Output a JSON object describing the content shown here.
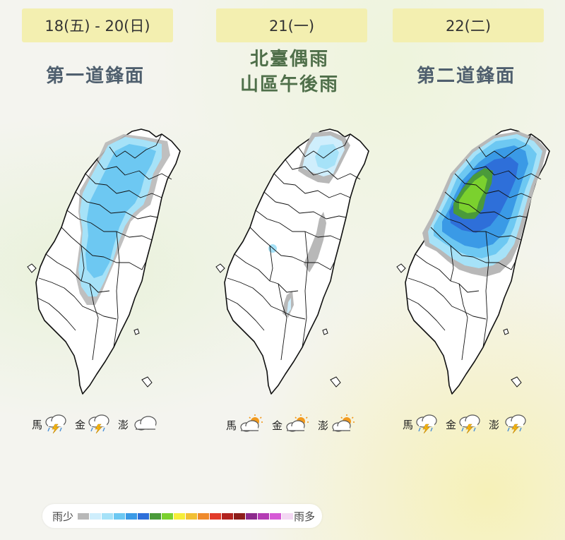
{
  "panels": [
    {
      "date": "18(五) - 20(日)",
      "headline_lines": [
        "第一道鋒面"
      ],
      "islands": [
        {
          "name": "馬",
          "icon": "cloud-thunder-rain-icon"
        },
        {
          "name": "金",
          "icon": "cloud-thunder-rain-icon"
        },
        {
          "name": "澎",
          "icon": "cloud-icon"
        }
      ]
    },
    {
      "date": "21(一)",
      "headline_lines": [
        "北臺偶雨",
        "山區午後雨"
      ],
      "islands": [
        {
          "name": "馬",
          "icon": "partly-sunny-icon"
        },
        {
          "name": "金",
          "icon": "partly-sunny-icon"
        },
        {
          "name": "澎",
          "icon": "partly-sunny-icon"
        }
      ]
    },
    {
      "date": "22(二)",
      "headline_lines": [
        "第二道鋒面"
      ],
      "islands": [
        {
          "name": "馬",
          "icon": "cloud-thunder-rain-icon"
        },
        {
          "name": "金",
          "icon": "cloud-thunder-rain-icon"
        },
        {
          "name": "澎",
          "icon": "cloud-thunder-rain-icon"
        }
      ]
    }
  ],
  "legend": {
    "low_label": "雨少",
    "high_label": "雨多",
    "colors": [
      "#b8b8b8",
      "#cfeefc",
      "#a6e2f8",
      "#6dc8f2",
      "#3a9ae6",
      "#2e6fd9",
      "#4a9a3a",
      "#7bd12e",
      "#f5ee3a",
      "#f2c034",
      "#ef8a2c",
      "#e23b2a",
      "#b2231f",
      "#8d1d1a",
      "#8c2a8c",
      "#b43cb4",
      "#d65ad6",
      "#f3d8f3"
    ]
  },
  "colors": {
    "date_box_bg": "#f3efb0",
    "headline_text": "#4f5f6e",
    "headline_text_alt": "#4f6f4a"
  }
}
